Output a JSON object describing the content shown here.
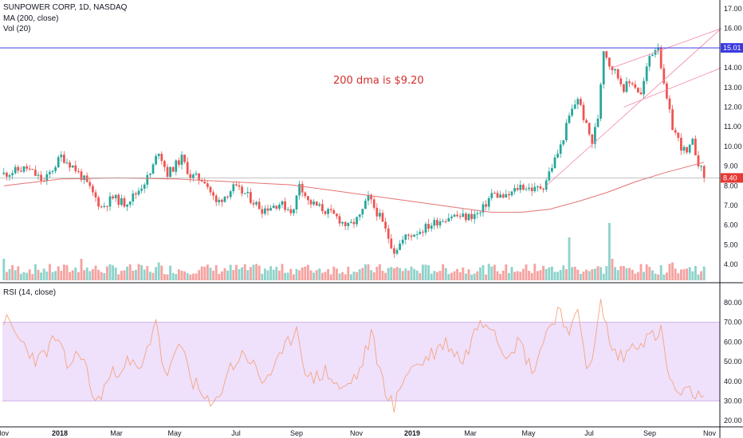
{
  "legend": {
    "title": "SUNPOWER CORP, 1D, NASDAQ",
    "ma": "MA (200, close)",
    "vol": "Vol (20)",
    "rsi": "RSI (14, close)"
  },
  "annotation": {
    "text": "200 dma is $9.20",
    "color": "#d32f2f"
  },
  "colors": {
    "up": "#26a69a",
    "down": "#ef5350",
    "vol_up": "#8fd3cb",
    "vol_down": "#f5a3a1",
    "ma": "#e57373",
    "hline": "#3a3ae0",
    "trend": "#f48fb1",
    "rsi_line": "#f4a582",
    "rsi_band": "#efe0fb",
    "rsi_band_edge": "#c8a6e0"
  },
  "badges": {
    "resistance": "15.01",
    "last": "8.40"
  },
  "chart_data": [
    {
      "type": "candlestick",
      "title": "SUNPOWER CORP, 1D, NASDAQ",
      "x_ticks": [
        "Nov",
        "2018",
        "Mar",
        "May",
        "Jul",
        "Sep",
        "Nov",
        "2019",
        "Mar",
        "May",
        "Jul",
        "Sep",
        "Nov"
      ],
      "y_ticks": [
        "17.00",
        "16.00",
        "15.00",
        "14.00",
        "13.00",
        "12.00",
        "11.00",
        "10.00",
        "9.00",
        "8.00",
        "7.00",
        "6.00",
        "5.00",
        "4.00"
      ],
      "ylim": [
        3.4,
        17.4
      ],
      "price_path": [
        [
          0,
          8.6
        ],
        [
          8,
          8.9
        ],
        [
          14,
          8.2
        ],
        [
          20,
          9.5
        ],
        [
          24,
          9.0
        ],
        [
          28,
          8.3
        ],
        [
          34,
          6.9
        ],
        [
          38,
          7.4
        ],
        [
          42,
          7.1
        ],
        [
          46,
          7.6
        ],
        [
          51,
          8.6
        ],
        [
          54,
          9.8
        ],
        [
          57,
          8.6
        ],
        [
          62,
          9.4
        ],
        [
          65,
          8.5
        ],
        [
          70,
          8.3
        ],
        [
          74,
          7.1
        ],
        [
          80,
          7.9
        ],
        [
          84,
          7.6
        ],
        [
          90,
          6.8
        ],
        [
          96,
          7.1
        ],
        [
          101,
          6.7
        ],
        [
          103,
          8.2
        ],
        [
          106,
          7.2
        ],
        [
          110,
          6.9
        ],
        [
          116,
          6.4
        ],
        [
          120,
          5.9
        ],
        [
          124,
          6.4
        ],
        [
          127,
          7.4
        ],
        [
          131,
          6.4
        ],
        [
          136,
          4.7
        ],
        [
          140,
          5.4
        ],
        [
          146,
          5.8
        ],
        [
          151,
          6.2
        ],
        [
          156,
          6.5
        ],
        [
          161,
          6.4
        ],
        [
          166,
          6.6
        ],
        [
          170,
          7.6
        ],
        [
          175,
          7.4
        ],
        [
          180,
          8.0
        ],
        [
          185,
          7.8
        ],
        [
          188,
          8.0
        ],
        [
          191,
          9.0
        ],
        [
          194,
          10.0
        ],
        [
          197,
          11.5
        ],
        [
          200,
          12.5
        ],
        [
          203,
          11.0
        ],
        [
          205,
          10.2
        ],
        [
          207,
          11.5
        ],
        [
          209,
          15.0
        ],
        [
          211,
          14.2
        ],
        [
          213,
          13.8
        ],
        [
          216,
          13.0
        ],
        [
          219,
          13.3
        ],
        [
          222,
          12.6
        ],
        [
          225,
          14.6
        ],
        [
          228,
          15.2
        ],
        [
          230,
          13.0
        ],
        [
          233,
          11.0
        ],
        [
          236,
          10.0
        ],
        [
          238,
          9.6
        ],
        [
          240,
          10.2
        ],
        [
          242,
          9.2
        ],
        [
          244,
          8.4
        ]
      ],
      "ma200_path": [
        [
          0,
          8.0
        ],
        [
          20,
          8.35
        ],
        [
          40,
          8.4
        ],
        [
          60,
          8.35
        ],
        [
          80,
          8.2
        ],
        [
          100,
          8.05
        ],
        [
          120,
          7.65
        ],
        [
          140,
          7.25
        ],
        [
          160,
          6.85
        ],
        [
          170,
          6.65
        ],
        [
          180,
          6.65
        ],
        [
          190,
          6.8
        ],
        [
          200,
          7.2
        ],
        [
          210,
          7.65
        ],
        [
          220,
          8.2
        ],
        [
          230,
          8.65
        ],
        [
          244,
          9.2
        ]
      ],
      "horizontal_line": 15.01,
      "last_price": 8.4,
      "trendlines": [
        {
          "from": [
            189,
            8.0
          ],
          "to": [
            250,
            16.0
          ]
        },
        {
          "from": [
            212,
            14.0
          ],
          "to": [
            250,
            16.0
          ]
        },
        {
          "from": [
            216,
            12.0
          ],
          "to": [
            250,
            14.0
          ]
        }
      ]
    },
    {
      "type": "bar",
      "name": "Vol (20)",
      "spikes": [
        [
          0,
          3
        ],
        [
          27,
          3
        ],
        [
          54,
          2.5
        ],
        [
          185,
          2.3
        ],
        [
          197,
          6
        ],
        [
          211,
          8
        ],
        [
          212,
          3
        ],
        [
          233,
          2.5
        ],
        [
          241,
          2
        ]
      ]
    },
    {
      "type": "line",
      "name": "RSI (14, close)",
      "y_ticks": [
        "80.00",
        "70.00",
        "60.00",
        "50.00",
        "40.00",
        "30.00",
        "20.00"
      ],
      "ylim": [
        16,
        86
      ],
      "band": [
        30,
        70
      ],
      "rsi_path": [
        [
          0,
          72
        ],
        [
          6,
          60
        ],
        [
          12,
          50
        ],
        [
          18,
          62
        ],
        [
          22,
          48
        ],
        [
          27,
          55
        ],
        [
          32,
          28
        ],
        [
          36,
          40
        ],
        [
          42,
          50
        ],
        [
          48,
          45
        ],
        [
          53,
          73
        ],
        [
          56,
          42
        ],
        [
          62,
          58
        ],
        [
          66,
          40
        ],
        [
          70,
          30
        ],
        [
          73,
          26
        ],
        [
          78,
          45
        ],
        [
          84,
          55
        ],
        [
          90,
          40
        ],
        [
          96,
          50
        ],
        [
          102,
          68
        ],
        [
          106,
          40
        ],
        [
          112,
          45
        ],
        [
          118,
          35
        ],
        [
          124,
          45
        ],
        [
          128,
          64
        ],
        [
          132,
          40
        ],
        [
          136,
          26
        ],
        [
          140,
          45
        ],
        [
          146,
          50
        ],
        [
          150,
          55
        ],
        [
          154,
          60
        ],
        [
          160,
          50
        ],
        [
          166,
          72
        ],
        [
          170,
          70
        ],
        [
          174,
          55
        ],
        [
          180,
          60
        ],
        [
          184,
          45
        ],
        [
          190,
          68
        ],
        [
          194,
          78
        ],
        [
          197,
          60
        ],
        [
          200,
          78
        ],
        [
          203,
          50
        ],
        [
          205,
          48
        ],
        [
          208,
          80
        ],
        [
          212,
          55
        ],
        [
          216,
          52
        ],
        [
          220,
          60
        ],
        [
          225,
          62
        ],
        [
          229,
          65
        ],
        [
          232,
          40
        ],
        [
          236,
          32
        ],
        [
          240,
          35
        ],
        [
          244,
          29
        ]
      ]
    }
  ]
}
